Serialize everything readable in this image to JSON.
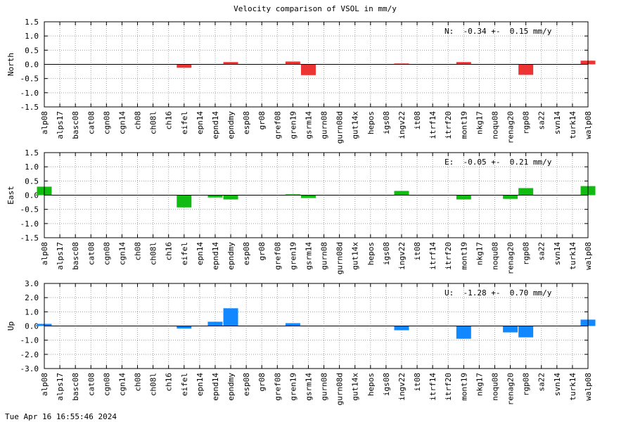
{
  "chart_data": {
    "type": "bar",
    "title": "Velocity comparison of VSOL in mm/y",
    "categories": [
      "alp08",
      "alps17",
      "basc08",
      "cat08",
      "cgn08",
      "cgn14",
      "ch08",
      "ch08l",
      "ch16",
      "eifel",
      "epn14",
      "epnd14",
      "epndmy",
      "esp08",
      "gr08",
      "gref08",
      "gren19",
      "gsrm14",
      "gurn08",
      "gurn08d",
      "gut14x",
      "hepos",
      "igs08",
      "ingv22",
      "it08",
      "itrf14",
      "itrf20",
      "mont19",
      "nkg17",
      "noqu08",
      "renag20",
      "rgp08",
      "sa22",
      "svn14",
      "turk14",
      "walp08"
    ],
    "grid": true,
    "panels": [
      {
        "ylabel": "North",
        "ylim": [
          -1.5,
          1.5
        ],
        "yticks": [
          "1.5",
          "1.0",
          "0.5",
          "0.0",
          "-0.5",
          "-1.0",
          "-1.5"
        ],
        "color": "#ee3333",
        "stat_label": "N:  -0.34 +-  0.15 mm/y",
        "values": [
          0,
          0,
          0,
          0,
          0,
          0,
          0,
          0,
          0,
          -0.12,
          0,
          0,
          0.08,
          0,
          0,
          0,
          0.1,
          -0.38,
          0,
          0,
          0,
          0,
          0,
          0.03,
          0,
          0,
          0,
          0.08,
          0,
          0,
          0,
          -0.37,
          0,
          0,
          0,
          0.13
        ]
      },
      {
        "ylabel": "East",
        "ylim": [
          -1.5,
          1.5
        ],
        "yticks": [
          "1.5",
          "1.0",
          "0.5",
          "0.0",
          "-0.5",
          "-1.0",
          "-1.5"
        ],
        "color": "#11bb11",
        "stat_label": "E:  -0.05 +-  0.21 mm/y",
        "values": [
          0.3,
          0,
          0,
          0,
          0,
          0,
          0,
          0,
          0,
          -0.43,
          0,
          -0.08,
          -0.15,
          0,
          0,
          0,
          0.03,
          -0.1,
          0,
          0,
          0,
          0,
          0,
          0.15,
          0,
          0,
          0,
          -0.15,
          0,
          0,
          -0.13,
          0.25,
          0,
          0,
          0,
          0.32
        ]
      },
      {
        "ylabel": "Up",
        "ylim": [
          -3.0,
          3.0
        ],
        "yticks": [
          "3.0",
          "2.0",
          "1.0",
          "0.0",
          "-1.0",
          "-2.0",
          "-3.0"
        ],
        "color": "#1188ff",
        "stat_label": "U:  -1.28 +-  0.70 mm/y",
        "values": [
          0.15,
          0,
          0,
          0,
          0,
          0,
          0,
          0,
          0,
          -0.18,
          0,
          0.3,
          1.25,
          0,
          0,
          0,
          0.2,
          0,
          0,
          0,
          0,
          0,
          0,
          -0.3,
          0,
          0,
          0,
          -0.9,
          0,
          0,
          -0.45,
          -0.8,
          0,
          0,
          0,
          0.45
        ]
      }
    ]
  },
  "footer": {
    "timestamp": "Tue Apr 16 16:55:46 2024"
  }
}
